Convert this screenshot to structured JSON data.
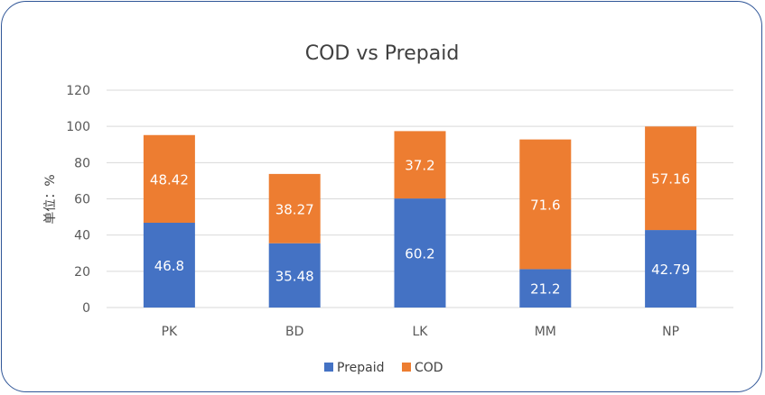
{
  "chart_data": {
    "type": "bar",
    "stacked": true,
    "title": "COD vs Prepaid",
    "xlabel": "",
    "ylabel": "单位：%",
    "ylim": [
      0,
      120
    ],
    "yticks": [
      0,
      20,
      40,
      60,
      80,
      100,
      120
    ],
    "grid": true,
    "legend_position": "bottom",
    "categories": [
      "PK",
      "BD",
      "LK",
      "MM",
      "NP"
    ],
    "series": [
      {
        "name": "Prepaid",
        "color": "#4472c4",
        "values": [
          46.8,
          35.48,
          60.2,
          21.2,
          42.79
        ]
      },
      {
        "name": "COD",
        "color": "#ed7d31",
        "values": [
          48.42,
          38.27,
          37.2,
          71.6,
          57.16
        ]
      }
    ]
  }
}
